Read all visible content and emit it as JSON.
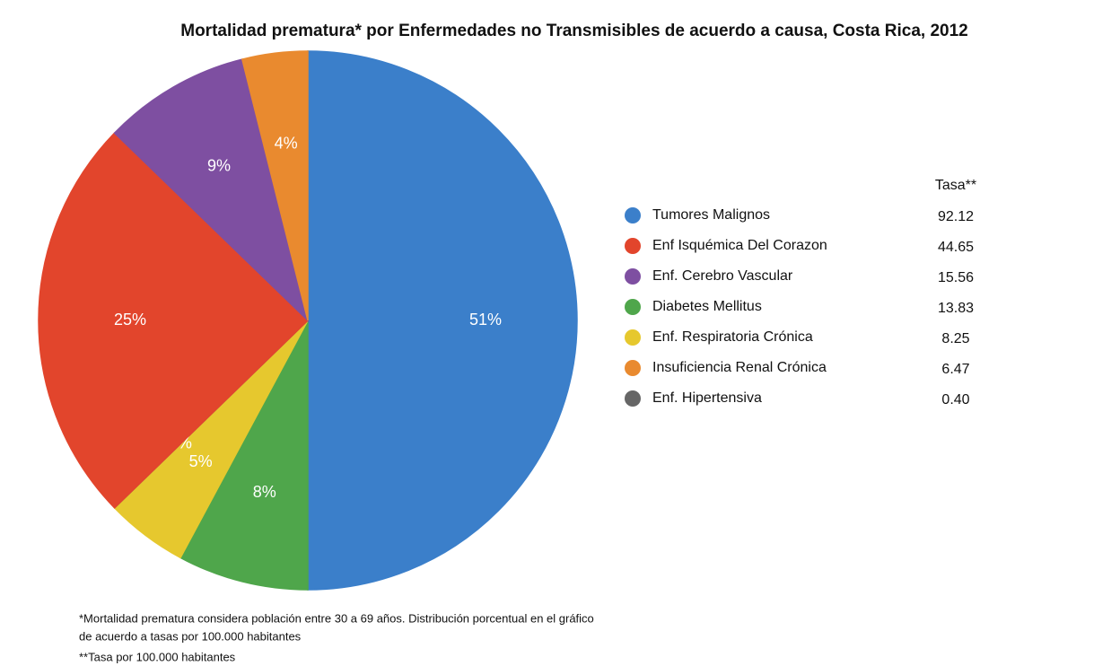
{
  "chart_data": {
    "type": "pie",
    "title": "Mortalidad prematura* por Enfermedades no Transmisibles de acuerdo a causa, Costa Rica, 2012",
    "categories": [
      "Tumores Malignos",
      "Enf Isquémica Del Corazon",
      "Enf. Cerebro Vascular",
      "Diabetes Mellitus",
      "Enf. Respiratoria Crónica",
      "Insuficiencia Renal Crónica",
      "Enf. Hipertensiva"
    ],
    "values": [
      51,
      25,
      9,
      8,
      5,
      4,
      0
    ],
    "value_labels": [
      "51%",
      "25%",
      "9%",
      "8%",
      "5%",
      "4%",
      "0%"
    ],
    "colors": [
      "#3b7fca",
      "#e2452c",
      "#7e4fa1",
      "#4fa64b",
      "#e6c82e",
      "#e98a2f",
      "#666666"
    ],
    "rate_header": "Tasa**",
    "rates": [
      "92.12",
      "44.65",
      "15.56",
      "13.83",
      "8.25",
      "6.47",
      "0.40"
    ],
    "legend": "right",
    "footnotes": [
      "*Mortalidad prematura considera población entre 30 a 69 años. Distribución porcentual en el gráfico",
      "de acuerdo a tasas por 100.000 habitantes",
      "**Tasa por 100.000 habitantes"
    ]
  }
}
